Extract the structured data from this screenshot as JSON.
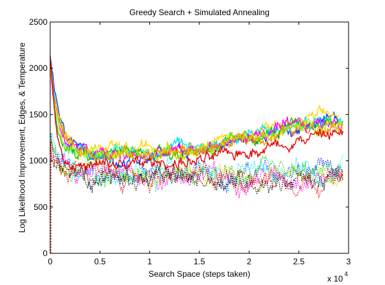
{
  "chart_data": {
    "type": "line",
    "title": "Greedy Search + Simulated Annealing",
    "xlabel": "Search Space (steps taken)",
    "ylabel": "Log Likelihood Improvement, Edges, & Temperature",
    "x_multiplier_label": "x 10",
    "x_multiplier_exponent": "4",
    "xlim": [
      0,
      30000
    ],
    "ylim": [
      0,
      2500
    ],
    "x_ticks": [
      0,
      5000,
      10000,
      15000,
      20000,
      25000,
      30000
    ],
    "x_tick_labels": [
      "0",
      "0.5",
      "1",
      "1.5",
      "2",
      "2.5",
      "3"
    ],
    "y_ticks": [
      0,
      500,
      1000,
      1500,
      2000,
      2500
    ],
    "y_tick_labels": [
      "0",
      "500",
      "1000",
      "1500",
      "2000",
      "2500"
    ],
    "grid": false,
    "legend": "none",
    "solid_series": [
      {
        "color": "#0033ff",
        "x": [
          0,
          300,
          800,
          1500,
          2500,
          4000,
          6000,
          8000,
          10000,
          12000,
          14000,
          16000,
          18000,
          20000,
          22000,
          24000,
          26000,
          28000,
          29000
        ],
        "values": [
          2150,
          1850,
          1500,
          1280,
          1150,
          1080,
          1030,
          1010,
          1040,
          1080,
          1090,
          1130,
          1190,
          1250,
          1280,
          1340,
          1390,
          1460,
          1480
        ]
      },
      {
        "color": "#ffd700",
        "x": [
          0,
          300,
          800,
          1500,
          2500,
          4000,
          6000,
          8000,
          10000,
          12000,
          14000,
          16000,
          18000,
          20000,
          22000,
          24000,
          26000,
          28000,
          29000
        ],
        "values": [
          2100,
          1780,
          1450,
          1250,
          1160,
          1120,
          1110,
          1120,
          1150,
          1170,
          1180,
          1200,
          1240,
          1300,
          1340,
          1390,
          1440,
          1490,
          1500
        ]
      },
      {
        "color": "#00e5ee",
        "x": [
          0,
          300,
          800,
          1500,
          2500,
          4000,
          6000,
          8000,
          10000,
          12000,
          14000,
          16000,
          18000,
          20000,
          22000,
          24000,
          26000,
          28000,
          29500
        ],
        "values": [
          2080,
          1760,
          1420,
          1220,
          1140,
          1100,
          1090,
          1100,
          1120,
          1140,
          1150,
          1180,
          1230,
          1280,
          1310,
          1360,
          1400,
          1440,
          1450
        ]
      },
      {
        "color": "#00cc00",
        "x": [
          0,
          300,
          800,
          1500,
          2500,
          4000,
          6000,
          8000,
          10000,
          12000,
          14000,
          16000,
          18000,
          20000,
          22000,
          24000,
          26000,
          28000,
          29500
        ],
        "values": [
          2050,
          1740,
          1400,
          1210,
          1130,
          1080,
          1070,
          1090,
          1100,
          1110,
          1110,
          1140,
          1180,
          1240,
          1290,
          1340,
          1380,
          1420,
          1420
        ]
      },
      {
        "color": "#ff00ff",
        "x": [
          0,
          300,
          800,
          1500,
          2500,
          4000,
          6000,
          8000,
          10000,
          12000,
          14000,
          16000,
          18000,
          20000,
          22000,
          24000,
          26000,
          28000,
          29500
        ],
        "values": [
          2070,
          1760,
          1420,
          1230,
          1140,
          1090,
          1060,
          1050,
          1060,
          1080,
          1100,
          1150,
          1200,
          1260,
          1300,
          1350,
          1380,
          1420,
          1430
        ]
      },
      {
        "color": "#ff8c00",
        "x": [
          0,
          300,
          800,
          1500,
          2500,
          4000,
          6000,
          8000,
          10000,
          12000,
          14000,
          16000,
          18000,
          20000,
          22000,
          24000,
          26000,
          28000,
          29500
        ],
        "values": [
          2120,
          1790,
          1440,
          1240,
          1150,
          1100,
          1070,
          1060,
          1080,
          1090,
          1100,
          1130,
          1180,
          1230,
          1270,
          1320,
          1360,
          1400,
          1410
        ]
      },
      {
        "color": "#c8e000",
        "x": [
          0,
          300,
          800,
          1500,
          2500,
          4000,
          6000,
          8000,
          10000,
          12000,
          14000,
          16000,
          18000,
          20000,
          22000,
          24000,
          26000,
          28000,
          29500
        ],
        "values": [
          2060,
          1740,
          1400,
          1210,
          1120,
          1080,
          1060,
          1060,
          1080,
          1100,
          1110,
          1140,
          1190,
          1250,
          1280,
          1330,
          1370,
          1410,
          1420
        ]
      },
      {
        "color": "#dd0000",
        "x": [
          0,
          300,
          800,
          1500,
          2500,
          4000,
          6000,
          8000,
          10000,
          12000,
          14000,
          16000,
          18000,
          20000,
          22000,
          24000,
          26000,
          28000,
          29500
        ],
        "values": [
          2180,
          1700,
          1250,
          1020,
          950,
          930,
          940,
          960,
          970,
          980,
          990,
          1010,
          1060,
          1120,
          1160,
          1210,
          1250,
          1290,
          1310
        ]
      }
    ],
    "dotted_series": [
      {
        "color": "#0033ff",
        "x": [
          0,
          300,
          1000,
          2000,
          4000,
          8000,
          12000,
          16000,
          20000,
          24000,
          28000,
          29500
        ],
        "values": [
          1250,
          1080,
          960,
          910,
          880,
          860,
          860,
          850,
          850,
          860,
          870,
          880
        ]
      },
      {
        "color": "#00e5ee",
        "x": [
          0,
          300,
          1000,
          2000,
          4000,
          8000,
          12000,
          16000,
          20000,
          24000,
          28000,
          29500
        ],
        "values": [
          1280,
          1100,
          970,
          920,
          890,
          870,
          870,
          870,
          880,
          890,
          900,
          910
        ]
      },
      {
        "color": "#ffd700",
        "x": [
          0,
          300,
          1000,
          2000,
          4000,
          8000,
          12000,
          16000,
          20000,
          24000,
          28000,
          29500
        ],
        "values": [
          1230,
          1070,
          950,
          900,
          870,
          850,
          850,
          840,
          840,
          850,
          860,
          870
        ]
      },
      {
        "color": "#00cc00",
        "x": [
          0,
          300,
          1000,
          2000,
          4000,
          8000,
          12000,
          16000,
          20000,
          24000,
          28000,
          29500
        ],
        "values": [
          1220,
          1060,
          940,
          890,
          860,
          850,
          840,
          840,
          840,
          840,
          850,
          850
        ]
      },
      {
        "color": "#ff00ff",
        "x": [
          0,
          300,
          1000,
          2000,
          4000,
          8000,
          12000,
          16000,
          20000,
          24000,
          28000,
          29500
        ],
        "values": [
          1200,
          1040,
          930,
          880,
          850,
          840,
          830,
          830,
          830,
          830,
          840,
          840
        ]
      },
      {
        "color": "#dd0000",
        "x": [
          0,
          300,
          1000,
          2000,
          4000,
          8000,
          12000,
          16000,
          20000,
          24000,
          28000,
          29500
        ],
        "values": [
          1200,
          1030,
          920,
          870,
          840,
          820,
          810,
          810,
          800,
          800,
          800,
          810
        ]
      },
      {
        "color": "#000000",
        "x": [
          0,
          300,
          1000,
          2000,
          4000,
          8000,
          12000,
          16000,
          20000,
          24000,
          28000,
          29500
        ],
        "values": [
          1180,
          1020,
          910,
          860,
          830,
          810,
          800,
          800,
          790,
          790,
          790,
          800
        ]
      }
    ]
  }
}
